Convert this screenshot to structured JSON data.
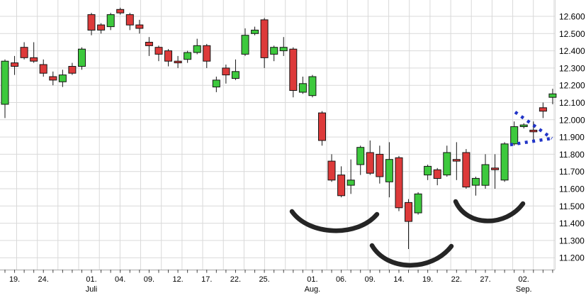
{
  "chart_data": {
    "type": "candlestick",
    "title": "",
    "xlabel": "",
    "ylabel": "",
    "grid": true,
    "legend": "none",
    "y_axis": {
      "side": "right",
      "min": 11.2,
      "max": 12.6,
      "step": 0.1,
      "labels": [
        "12.600",
        "12.500",
        "12.400",
        "12.300",
        "12.200",
        "12.100",
        "12.000",
        "11.900",
        "11.800",
        "11.700",
        "11.600",
        "11.500",
        "11.400",
        "11.300",
        "11.200"
      ],
      "values": [
        12.6,
        12.5,
        12.4,
        12.3,
        12.2,
        12.1,
        12.0,
        11.9,
        11.8,
        11.7,
        11.6,
        11.5,
        11.4,
        11.3,
        11.2
      ]
    },
    "x_axis": {
      "day_labels": [
        {
          "candle": 2,
          "text": "19."
        },
        {
          "candle": 5,
          "text": "24."
        },
        {
          "candle": 10,
          "text": "01."
        },
        {
          "candle": 13,
          "text": "04."
        },
        {
          "candle": 16,
          "text": "09."
        },
        {
          "candle": 19,
          "text": "12."
        },
        {
          "candle": 22,
          "text": "17."
        },
        {
          "candle": 25,
          "text": "22."
        },
        {
          "candle": 28,
          "text": "25."
        },
        {
          "candle": 33,
          "text": "01."
        },
        {
          "candle": 36,
          "text": "06."
        },
        {
          "candle": 39,
          "text": "09."
        },
        {
          "candle": 42,
          "text": "14."
        },
        {
          "candle": 45,
          "text": "19."
        },
        {
          "candle": 48,
          "text": "22."
        },
        {
          "candle": 51,
          "text": "27."
        },
        {
          "candle": 55,
          "text": "02."
        }
      ],
      "month_labels": [
        {
          "candle": 10,
          "text": "Juli"
        },
        {
          "candle": 33,
          "text": "Aug."
        },
        {
          "candle": 55,
          "text": "Sep."
        }
      ]
    },
    "candles_ohlc": [
      [
        12.09,
        12.35,
        12.01,
        12.34
      ],
      [
        12.33,
        12.37,
        12.26,
        12.31
      ],
      [
        12.42,
        12.45,
        12.35,
        12.36
      ],
      [
        12.36,
        12.45,
        12.33,
        12.34
      ],
      [
        12.32,
        12.35,
        12.25,
        12.27
      ],
      [
        12.25,
        12.28,
        12.2,
        12.23
      ],
      [
        12.22,
        12.29,
        12.19,
        12.26
      ],
      [
        12.31,
        12.33,
        12.26,
        12.27
      ],
      [
        12.31,
        12.42,
        12.29,
        12.41
      ],
      [
        12.61,
        12.62,
        12.49,
        12.52
      ],
      [
        12.55,
        12.56,
        12.5,
        12.52
      ],
      [
        12.54,
        12.62,
        12.52,
        12.61
      ],
      [
        12.64,
        12.65,
        12.61,
        12.62
      ],
      [
        12.61,
        12.62,
        12.52,
        12.55
      ],
      [
        12.55,
        12.58,
        12.5,
        12.53
      ],
      [
        12.45,
        12.48,
        12.37,
        12.43
      ],
      [
        12.42,
        12.43,
        12.34,
        12.38
      ],
      [
        12.4,
        12.41,
        12.31,
        12.34
      ],
      [
        12.34,
        12.37,
        12.3,
        12.33
      ],
      [
        12.35,
        12.4,
        12.33,
        12.39
      ],
      [
        12.39,
        12.47,
        12.38,
        12.43
      ],
      [
        12.43,
        12.44,
        12.3,
        12.34
      ],
      [
        12.19,
        12.25,
        12.16,
        12.23
      ],
      [
        12.3,
        12.32,
        12.21,
        12.26
      ],
      [
        12.24,
        12.35,
        12.23,
        12.28
      ],
      [
        12.38,
        12.53,
        12.37,
        12.49
      ],
      [
        12.5,
        12.54,
        12.49,
        12.52
      ],
      [
        12.58,
        12.59,
        12.3,
        12.36
      ],
      [
        12.38,
        12.43,
        12.34,
        12.42
      ],
      [
        12.4,
        12.48,
        12.37,
        12.42
      ],
      [
        12.41,
        12.42,
        12.13,
        12.17
      ],
      [
        12.16,
        12.25,
        12.15,
        12.21
      ],
      [
        12.14,
        12.26,
        12.13,
        12.25
      ],
      [
        12.04,
        12.05,
        11.85,
        11.88
      ],
      [
        11.76,
        11.8,
        11.64,
        11.65
      ],
      [
        11.68,
        11.73,
        11.55,
        11.56
      ],
      [
        11.62,
        11.77,
        11.57,
        11.65
      ],
      [
        11.74,
        11.85,
        11.68,
        11.84
      ],
      [
        11.81,
        11.88,
        11.68,
        11.69
      ],
      [
        11.8,
        11.85,
        11.63,
        11.67
      ],
      [
        11.64,
        11.87,
        11.55,
        11.77
      ],
      [
        11.78,
        11.79,
        11.47,
        11.49
      ],
      [
        11.52,
        11.54,
        11.25,
        11.41
      ],
      [
        11.46,
        11.58,
        11.45,
        11.57
      ],
      [
        11.68,
        11.74,
        11.65,
        11.73
      ],
      [
        11.71,
        11.72,
        11.62,
        11.66
      ],
      [
        11.68,
        11.85,
        11.67,
        11.81
      ],
      [
        11.77,
        11.87,
        11.65,
        11.76
      ],
      [
        11.81,
        11.83,
        11.6,
        11.61
      ],
      [
        11.62,
        11.67,
        11.56,
        11.66
      ],
      [
        11.62,
        11.8,
        11.6,
        11.74
      ],
      [
        11.72,
        11.8,
        11.6,
        11.71
      ],
      [
        11.65,
        11.87,
        11.64,
        11.86
      ],
      [
        11.86,
        11.99,
        11.85,
        11.96
      ],
      [
        11.96,
        11.98,
        11.95,
        11.97
      ],
      [
        11.94,
        11.99,
        11.87,
        11.93
      ],
      [
        12.07,
        12.1,
        12.01,
        12.05
      ],
      [
        12.13,
        12.18,
        12.09,
        12.15
      ]
    ],
    "colors": {
      "up": "#3dc93d",
      "down": "#dd3a3a",
      "outline": "#141414",
      "wick": "#141414",
      "grid": "#d9d9d9",
      "axis_line": "#a8a8a8",
      "tick": "#444444",
      "text": "#000000",
      "marker_black": "#141414",
      "annotation_blue": "#2134c7",
      "background": "#ffffff"
    },
    "annotations": {
      "marker_arcs": [
        {
          "name": "left-shoulder-arc",
          "from": [
            412,
            298
          ],
          "c1": [
            436,
            332
          ],
          "c2": [
            504,
            335
          ],
          "to": [
            532,
            302
          ]
        },
        {
          "name": "head-arc",
          "from": [
            525,
            346
          ],
          "c1": [
            546,
            382
          ],
          "c2": [
            608,
            384
          ],
          "to": [
            637,
            347
          ]
        },
        {
          "name": "right-shoulder-arc",
          "from": [
            643,
            284
          ],
          "c1": [
            659,
            320
          ],
          "c2": [
            714,
            320
          ],
          "to": [
            738,
            287
          ]
        }
      ],
      "dotted_triangle": {
        "lines": [
          [
            [
              727,
              158
            ],
            [
              779,
              195
            ]
          ],
          [
            [
              720,
              204
            ],
            [
              779,
              195
            ]
          ]
        ]
      }
    }
  }
}
